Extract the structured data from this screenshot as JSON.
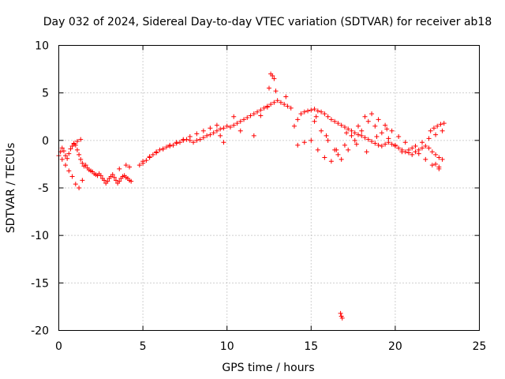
{
  "chart_data": {
    "type": "scatter",
    "title": "Day 032 of 2024, Sidereal Day-to-day VTEC variation (SDTVAR) for receiver ab18",
    "xlabel": "GPS time / hours",
    "ylabel": "SDTVAR / TECUs",
    "xlim": [
      0,
      25
    ],
    "ylim": [
      -20,
      10
    ],
    "xticks": [
      0,
      5,
      10,
      15,
      20,
      25
    ],
    "yticks": [
      -20,
      -15,
      -10,
      -5,
      0,
      5,
      10
    ],
    "xtick_labels": [
      "0",
      "5",
      "10",
      "15",
      "20",
      "25"
    ],
    "ytick_labels": [
      "-20",
      "-15",
      "-10",
      "-5",
      "0",
      "5",
      "10"
    ],
    "grid": true,
    "marker": "+",
    "color": "#ff0000",
    "series": [
      {
        "name": "SDTVAR",
        "x": [
          0.0,
          0.1,
          0.2,
          0.3,
          0.4,
          0.5,
          0.6,
          0.7,
          0.8,
          0.9,
          1.0,
          1.1,
          1.2,
          1.3,
          1.4,
          1.5,
          1.6,
          1.7,
          1.8,
          1.9,
          2.0,
          2.1,
          2.2,
          2.3,
          2.4,
          2.5,
          2.6,
          2.7,
          2.8,
          2.9,
          3.0,
          3.1,
          3.2,
          3.3,
          3.4,
          3.5,
          3.6,
          3.7,
          3.8,
          3.9,
          4.0,
          4.1,
          4.2,
          4.3,
          0.2,
          0.4,
          0.6,
          0.8,
          1.0,
          1.2,
          1.4,
          0.9,
          1.1,
          1.3,
          3.6,
          4.0,
          4.2,
          4.8,
          5.0,
          5.2,
          5.4,
          5.6,
          5.8,
          6.0,
          6.2,
          6.4,
          6.6,
          6.8,
          7.0,
          7.2,
          7.4,
          7.6,
          7.8,
          8.0,
          8.2,
          8.4,
          8.6,
          8.8,
          9.0,
          9.2,
          9.4,
          9.6,
          9.8,
          10.0,
          10.2,
          10.4,
          10.6,
          10.8,
          11.0,
          11.2,
          11.4,
          11.6,
          11.8,
          12.0,
          12.2,
          12.4,
          12.6,
          12.8,
          13.0,
          13.2,
          13.4,
          13.6,
          13.8,
          5.0,
          5.4,
          5.8,
          6.2,
          6.6,
          7.0,
          7.4,
          7.8,
          8.2,
          8.6,
          9.0,
          9.4,
          9.6,
          9.8,
          10.4,
          10.8,
          11.6,
          12.0,
          12.4,
          12.6,
          12.7,
          12.8,
          12.5,
          12.9,
          13.5,
          14.0,
          14.2,
          14.4,
          14.6,
          14.8,
          15.0,
          15.2,
          15.4,
          15.6,
          15.8,
          16.0,
          16.2,
          16.4,
          16.6,
          16.8,
          17.0,
          17.2,
          17.4,
          17.6,
          17.8,
          18.0,
          18.2,
          18.4,
          18.6,
          18.8,
          19.0,
          19.2,
          19.4,
          19.6,
          19.8,
          20.0,
          20.2,
          20.4,
          20.6,
          20.8,
          21.0,
          21.2,
          21.4,
          21.6,
          21.8,
          22.0,
          22.2,
          22.4,
          22.6,
          22.8,
          15.0,
          15.4,
          15.8,
          16.2,
          16.6,
          17.0,
          17.4,
          17.8,
          18.2,
          18.6,
          19.0,
          19.4,
          19.8,
          20.2,
          20.6,
          21.0,
          21.4,
          21.8,
          22.2,
          22.6,
          15.2,
          15.6,
          16.0,
          16.4,
          16.8,
          17.2,
          17.6,
          18.0,
          18.4,
          18.8,
          19.2,
          19.6,
          20.0,
          20.4,
          20.8,
          21.2,
          21.6,
          22.0,
          22.4,
          22.8,
          14.2,
          14.6,
          15.3,
          15.9,
          16.5,
          17.1,
          17.7,
          18.3,
          18.9,
          19.5,
          22.1,
          22.3,
          22.5,
          22.7,
          22.9,
          22.4,
          22.6,
          16.75,
          16.8,
          16.85
        ],
        "y": [
          -1.6,
          -1.2,
          -0.8,
          -1.1,
          -1.6,
          -1.9,
          -1.4,
          -0.9,
          -0.6,
          -0.4,
          -0.5,
          -1.0,
          -1.5,
          -2.0,
          -2.4,
          -2.7,
          -2.6,
          -2.9,
          -3.1,
          -3.2,
          -3.3,
          -3.5,
          -3.6,
          -3.7,
          -3.5,
          -3.7,
          -4.0,
          -4.2,
          -4.5,
          -4.3,
          -4.0,
          -3.8,
          -3.6,
          -3.9,
          -4.2,
          -4.5,
          -4.3,
          -4.0,
          -3.8,
          -3.7,
          -3.9,
          -4.0,
          -4.2,
          -4.3,
          -2.0,
          -2.6,
          -3.2,
          -3.8,
          -4.6,
          -5.0,
          -4.2,
          -0.3,
          -0.1,
          0.1,
          -3.0,
          -2.6,
          -2.8,
          -2.6,
          -2.4,
          -2.1,
          -1.8,
          -1.5,
          -1.3,
          -1.0,
          -0.9,
          -0.7,
          -0.6,
          -0.5,
          -0.3,
          -0.2,
          0.0,
          0.1,
          0.0,
          -0.2,
          0.0,
          0.1,
          0.3,
          0.5,
          0.6,
          0.8,
          1.0,
          1.2,
          1.3,
          1.5,
          1.4,
          1.6,
          1.8,
          2.0,
          2.2,
          2.4,
          2.6,
          2.8,
          3.0,
          3.2,
          3.4,
          3.6,
          3.8,
          4.0,
          4.2,
          4.0,
          3.8,
          3.6,
          3.4,
          -2.2,
          -1.7,
          -1.2,
          -0.9,
          -0.5,
          -0.2,
          0.1,
          0.4,
          0.7,
          1.0,
          1.3,
          1.6,
          0.5,
          -0.2,
          2.5,
          1.0,
          0.5,
          2.6,
          3.5,
          7.0,
          6.8,
          6.5,
          5.5,
          5.2,
          4.6,
          1.5,
          2.2,
          2.8,
          3.0,
          3.1,
          3.2,
          3.3,
          3.1,
          3.0,
          2.8,
          2.5,
          2.2,
          2.0,
          1.8,
          1.6,
          1.4,
          1.2,
          1.0,
          0.8,
          0.6,
          0.5,
          0.3,
          0.1,
          -0.1,
          -0.3,
          -0.5,
          -0.6,
          -0.4,
          -0.2,
          -0.4,
          -0.6,
          -0.8,
          -1.0,
          -1.2,
          -1.3,
          -1.5,
          -1.2,
          -1.0,
          -0.8,
          -0.6,
          -0.8,
          -1.2,
          -1.5,
          -1.8,
          -2.0,
          0.0,
          -1.0,
          -1.8,
          -2.2,
          -1.5,
          -0.5,
          0.5,
          1.5,
          2.5,
          2.8,
          2.2,
          1.6,
          1.0,
          0.4,
          -0.2,
          -0.8,
          -1.4,
          -2.0,
          -2.6,
          -3.0,
          2.0,
          1.0,
          0.0,
          -1.0,
          -2.0,
          -1.0,
          0.0,
          1.0,
          2.0,
          1.5,
          0.8,
          0.2,
          -0.5,
          -1.2,
          -1.0,
          -0.6,
          -0.2,
          0.2,
          0.6,
          1.0,
          -0.5,
          -0.2,
          2.5,
          0.5,
          -1.0,
          0.8,
          -0.4,
          -1.2,
          0.4,
          1.2,
          1.0,
          1.3,
          1.5,
          1.7,
          1.8,
          -2.5,
          -2.8,
          -18.2,
          -18.5,
          -18.7
        ]
      }
    ]
  }
}
